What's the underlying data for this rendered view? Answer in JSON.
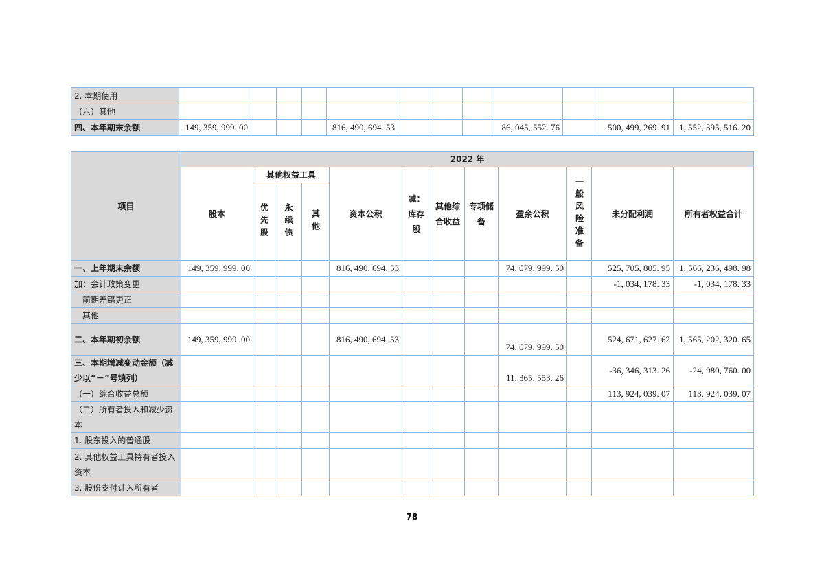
{
  "table1": {
    "rows": [
      {
        "label": "2. 本期使用",
        "bold": false,
        "values": [
          "",
          "",
          "",
          "",
          "",
          "",
          "",
          "",
          "",
          "",
          "",
          ""
        ]
      },
      {
        "label": "（六）其他",
        "bold": false,
        "values": [
          "",
          "",
          "",
          "",
          "",
          "",
          "",
          "",
          "",
          "",
          "",
          ""
        ]
      },
      {
        "label": "四、本年期末余额",
        "bold": true,
        "values": [
          "149, 359, 999. 00",
          "",
          "",
          "",
          "816, 490, 694. 53",
          "",
          "",
          "",
          "86, 045, 552. 76",
          "",
          "500, 499, 269. 91",
          "1, 552, 395, 516. 20"
        ]
      }
    ]
  },
  "table2": {
    "year": "2022 年",
    "item_header": "项目",
    "group_header": "其他权益工具",
    "columns": [
      "股本",
      "优先股",
      "永续债",
      "其他",
      "资本公积",
      "减：库存股",
      "其他综合收益",
      "专项储备",
      "盈余公积",
      "一般风险准备",
      "未分配利润",
      "所有者权益合计"
    ],
    "rows": [
      {
        "label": "一、上年期末余额",
        "bold": true,
        "values": [
          "149, 359, 999. 00",
          "",
          "",
          "",
          "816, 490, 694. 53",
          "",
          "",
          "",
          "74, 679, 999. 50",
          "",
          "525, 705, 805. 95",
          "1, 566, 236, 498. 98"
        ]
      },
      {
        "label": "加：会计政策变更",
        "bold": false,
        "values": [
          "",
          "",
          "",
          "",
          "",
          "",
          "",
          "",
          "",
          "",
          "-1, 034, 178. 33",
          "-1, 034, 178. 33"
        ]
      },
      {
        "label": "　前期差错更正",
        "bold": false,
        "values": [
          "",
          "",
          "",
          "",
          "",
          "",
          "",
          "",
          "",
          "",
          "",
          ""
        ]
      },
      {
        "label": "　其他",
        "bold": false,
        "values": [
          "",
          "",
          "",
          "",
          "",
          "",
          "",
          "",
          "",
          "",
          "",
          ""
        ]
      },
      {
        "label": "二、本年期初余额",
        "bold": true,
        "values": [
          "149, 359, 999. 00",
          "",
          "",
          "",
          "816, 490, 694. 53",
          "",
          "",
          "",
          "74, 679, 999. 50",
          "",
          "524, 671, 627. 62",
          "1, 565, 202, 320. 65"
        ]
      },
      {
        "label": "三、本期增减变动金额（减少以“－”号填列）",
        "bold": true,
        "values": [
          "",
          "",
          "",
          "",
          "",
          "",
          "",
          "",
          "11, 365, 553. 26",
          "",
          "-36, 346, 313. 26",
          "-24, 980, 760. 00"
        ]
      },
      {
        "label": "（一）综合收益总额",
        "bold": false,
        "values": [
          "",
          "",
          "",
          "",
          "",
          "",
          "",
          "",
          "",
          "",
          "113, 924, 039. 07",
          "113, 924, 039. 07"
        ]
      },
      {
        "label": "（二）所有者投入和减少资本",
        "bold": false,
        "values": [
          "",
          "",
          "",
          "",
          "",
          "",
          "",
          "",
          "",
          "",
          "",
          ""
        ]
      },
      {
        "label": "1. 股东投入的普通股",
        "bold": false,
        "values": [
          "",
          "",
          "",
          "",
          "",
          "",
          "",
          "",
          "",
          "",
          "",
          ""
        ]
      },
      {
        "label": "2. 其他权益工具持有者投入资本",
        "bold": false,
        "values": [
          "",
          "",
          "",
          "",
          "",
          "",
          "",
          "",
          "",
          "",
          "",
          ""
        ]
      },
      {
        "label": "3. 股份支付计入所有者",
        "bold": false,
        "values": [
          "",
          "",
          "",
          "",
          "",
          "",
          "",
          "",
          "",
          "",
          "",
          ""
        ]
      }
    ]
  },
  "page_number": "78"
}
